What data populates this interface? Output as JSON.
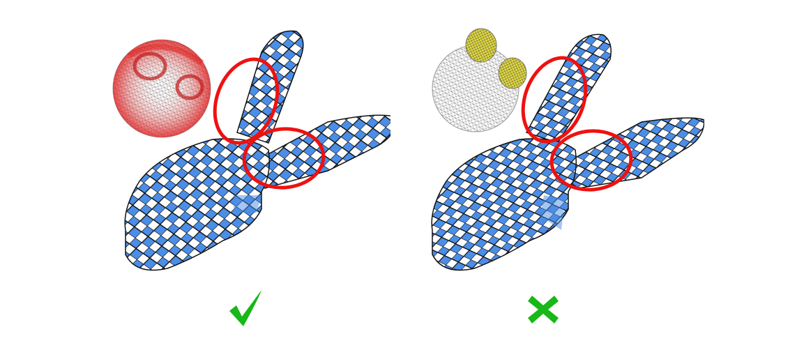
{
  "panels": [
    {
      "id": "left",
      "parameterization_quality": "good",
      "inset_highlight": "red-distortion-map",
      "verdict_icon": "checkmark-icon"
    },
    {
      "id": "right",
      "parameterization_quality": "bad",
      "inset_highlight": "yellow-cluster-map",
      "verdict_icon": "cross-icon"
    }
  ],
  "colors": {
    "checker_blue": "#4a8ee8",
    "checker_white": "#ffffff",
    "grid_line": "#111111",
    "circle": "#ee1111",
    "mesh_wire": "#555555",
    "distortion_red": "#e02020",
    "cluster_yellow": "#d8d020",
    "verdict_green": "#17b817"
  }
}
